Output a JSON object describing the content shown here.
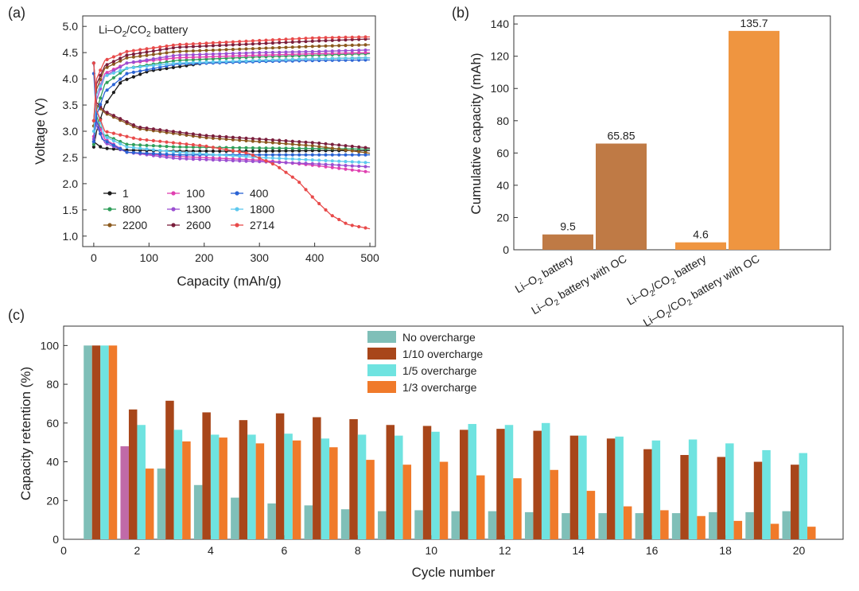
{
  "panel_labels": {
    "a": "(a)",
    "b": "(b)",
    "c": "(c)"
  },
  "chart_data": [
    {
      "id": "a",
      "type": "line",
      "annotation_main": "Li–O",
      "annotation_sub1": "2",
      "annotation_mid": "/CO",
      "annotation_sub2": "2",
      "annotation_end": " battery",
      "xlabel": "Capacity (mAh/g)",
      "ylabel": "Voltage (V)",
      "xlim": [
        -20,
        510
      ],
      "ylim": [
        0.8,
        5.2
      ],
      "xticks": [
        0,
        100,
        200,
        300,
        400,
        500
      ],
      "yticks": [
        1.0,
        1.5,
        2.0,
        2.5,
        3.0,
        3.5,
        4.0,
        4.5,
        5.0
      ],
      "x_tick_labels": [
        "0",
        "100",
        "200",
        "300",
        "400",
        "500"
      ],
      "y_tick_labels": [
        "1.0",
        "1.5",
        "2.0",
        "2.5",
        "3.0",
        "3.5",
        "4.0",
        "4.5",
        "5.0"
      ],
      "legend_position": "bottom-left",
      "series": [
        {
          "name": "1",
          "color": "#1a1a1a",
          "discharge": [
            [
              0,
              2.8
            ],
            [
              15,
              2.68
            ],
            [
              60,
              2.64
            ],
            [
              150,
              2.62
            ],
            [
              300,
              2.62
            ],
            [
              400,
              2.63
            ],
            [
              500,
              2.63
            ]
          ],
          "charge": [
            [
              0,
              2.7
            ],
            [
              5,
              3.0
            ],
            [
              20,
              3.5
            ],
            [
              50,
              3.95
            ],
            [
              100,
              4.15
            ],
            [
              200,
              4.3
            ],
            [
              300,
              4.35
            ],
            [
              400,
              4.38
            ],
            [
              500,
              4.4
            ]
          ]
        },
        {
          "name": "800",
          "color": "#2f9e5a",
          "discharge": [
            [
              0,
              4.3
            ],
            [
              5,
              3.3
            ],
            [
              15,
              2.95
            ],
            [
              60,
              2.75
            ],
            [
              150,
              2.7
            ],
            [
              300,
              2.68
            ],
            [
              400,
              2.67
            ],
            [
              500,
              2.66
            ]
          ],
          "charge": [
            [
              0,
              2.75
            ],
            [
              5,
              3.4
            ],
            [
              20,
              3.9
            ],
            [
              60,
              4.2
            ],
            [
              150,
              4.35
            ],
            [
              300,
              4.42
            ],
            [
              400,
              4.45
            ],
            [
              500,
              4.48
            ]
          ]
        },
        {
          "name": "2200",
          "color": "#8c5a1e",
          "discharge": [
            [
              0,
              4.3
            ],
            [
              5,
              3.5
            ],
            [
              20,
              3.35
            ],
            [
              80,
              3.05
            ],
            [
              200,
              2.88
            ],
            [
              300,
              2.8
            ],
            [
              400,
              2.72
            ],
            [
              500,
              2.58
            ]
          ],
          "charge": [
            [
              0,
              3.1
            ],
            [
              5,
              3.8
            ],
            [
              20,
              4.2
            ],
            [
              60,
              4.4
            ],
            [
              150,
              4.52
            ],
            [
              300,
              4.58
            ],
            [
              400,
              4.62
            ],
            [
              500,
              4.65
            ]
          ]
        },
        {
          "name": "100",
          "color": "#e040b0",
          "discharge": [
            [
              0,
              4.3
            ],
            [
              5,
              3.2
            ],
            [
              20,
              2.85
            ],
            [
              60,
              2.6
            ],
            [
              150,
              2.52
            ],
            [
              300,
              2.45
            ],
            [
              400,
              2.35
            ],
            [
              500,
              2.22
            ]
          ],
          "charge": [
            [
              0,
              2.9
            ],
            [
              5,
              3.7
            ],
            [
              20,
              4.1
            ],
            [
              60,
              4.3
            ],
            [
              150,
              4.4
            ],
            [
              300,
              4.45
            ],
            [
              400,
              4.48
            ],
            [
              500,
              4.5
            ]
          ]
        },
        {
          "name": "1300",
          "color": "#9b4fd1",
          "discharge": [
            [
              0,
              4.3
            ],
            [
              5,
              3.1
            ],
            [
              20,
              2.78
            ],
            [
              60,
              2.6
            ],
            [
              150,
              2.48
            ],
            [
              300,
              2.42
            ],
            [
              400,
              2.38
            ],
            [
              500,
              2.32
            ]
          ],
          "charge": [
            [
              0,
              2.85
            ],
            [
              5,
              3.6
            ],
            [
              20,
              4.05
            ],
            [
              60,
              4.3
            ],
            [
              150,
              4.45
            ],
            [
              300,
              4.5
            ],
            [
              400,
              4.52
            ],
            [
              500,
              4.55
            ]
          ]
        },
        {
          "name": "2600",
          "color": "#7a1e3c",
          "discharge": [
            [
              0,
              4.3
            ],
            [
              5,
              3.55
            ],
            [
              20,
              3.38
            ],
            [
              80,
              3.08
            ],
            [
              200,
              2.92
            ],
            [
              300,
              2.85
            ],
            [
              400,
              2.78
            ],
            [
              500,
              2.68
            ]
          ],
          "charge": [
            [
              0,
              3.2
            ],
            [
              5,
              3.9
            ],
            [
              20,
              4.25
            ],
            [
              60,
              4.45
            ],
            [
              150,
              4.6
            ],
            [
              300,
              4.67
            ],
            [
              400,
              4.72
            ],
            [
              500,
              4.76
            ]
          ]
        },
        {
          "name": "400",
          "color": "#2a63d4",
          "discharge": [
            [
              0,
              4.1
            ],
            [
              5,
              3.2
            ],
            [
              15,
              2.85
            ],
            [
              60,
              2.6
            ],
            [
              150,
              2.55
            ],
            [
              300,
              2.55
            ],
            [
              400,
              2.55
            ],
            [
              500,
              2.55
            ]
          ],
          "charge": [
            [
              0,
              2.8
            ],
            [
              5,
              3.3
            ],
            [
              20,
              3.75
            ],
            [
              60,
              4.1
            ],
            [
              150,
              4.28
            ],
            [
              300,
              4.33
            ],
            [
              400,
              4.35
            ],
            [
              500,
              4.36
            ]
          ]
        },
        {
          "name": "1800",
          "color": "#5ec8ee",
          "discharge": [
            [
              0,
              4.3
            ],
            [
              5,
              3.4
            ],
            [
              20,
              2.9
            ],
            [
              60,
              2.7
            ],
            [
              150,
              2.6
            ],
            [
              300,
              2.5
            ],
            [
              400,
              2.45
            ],
            [
              500,
              2.4
            ]
          ],
          "charge": [
            [
              0,
              3.0
            ],
            [
              5,
              3.7
            ],
            [
              20,
              4.05
            ],
            [
              60,
              4.2
            ],
            [
              150,
              4.3
            ],
            [
              300,
              4.35
            ],
            [
              400,
              4.38
            ],
            [
              500,
              4.4
            ]
          ]
        },
        {
          "name": "2714",
          "color": "#e84a4a",
          "discharge": [
            [
              0,
              4.3
            ],
            [
              5,
              3.4
            ],
            [
              20,
              3.0
            ],
            [
              80,
              2.85
            ],
            [
              200,
              2.72
            ],
            [
              280,
              2.58
            ],
            [
              330,
              2.35
            ],
            [
              370,
              2.05
            ],
            [
              400,
              1.7
            ],
            [
              430,
              1.4
            ],
            [
              460,
              1.22
            ],
            [
              500,
              1.14
            ]
          ],
          "charge": [
            [
              0,
              3.2
            ],
            [
              5,
              4.0
            ],
            [
              20,
              4.35
            ],
            [
              60,
              4.52
            ],
            [
              150,
              4.65
            ],
            [
              300,
              4.73
            ],
            [
              400,
              4.78
            ],
            [
              500,
              4.8
            ]
          ]
        }
      ]
    },
    {
      "id": "b",
      "type": "bar",
      "ylabel": "Cumulative capacity (mAh)",
      "ylim": [
        0,
        145
      ],
      "yticks": [
        0,
        20,
        40,
        60,
        80,
        100,
        120,
        140
      ],
      "y_tick_labels": [
        "0",
        "20",
        "40",
        "60",
        "80",
        "100",
        "120",
        "140"
      ],
      "categories": [
        {
          "pre": "Li–O",
          "sub": "2",
          "mid": "",
          "sub2": "",
          "post": " battery"
        },
        {
          "pre": "Li–O",
          "sub": "2",
          "mid": "",
          "sub2": "",
          "post": " battery with OC"
        },
        {
          "pre": "Li–O",
          "sub": "2",
          "mid": "/CO",
          "sub2": "2",
          "post": " battery"
        },
        {
          "pre": "Li–O",
          "sub": "2",
          "mid": "/CO",
          "sub2": "2",
          "post": " battery with OC"
        }
      ],
      "values": [
        9.5,
        65.85,
        4.6,
        135.7
      ],
      "value_labels": [
        "9.5",
        "65.85",
        "4.6",
        "135.7"
      ],
      "colors": [
        "#bf7a45",
        "#bf7a45",
        "#ef9540",
        "#ef9540"
      ]
    },
    {
      "id": "c",
      "type": "bar",
      "xlabel": "Cycle number",
      "ylabel": "Capacity  retention (%)",
      "xlim": [
        0,
        21.2
      ],
      "ylim": [
        0,
        110
      ],
      "xticks": [
        0,
        2,
        4,
        6,
        8,
        10,
        12,
        14,
        16,
        18,
        20
      ],
      "x_tick_labels": [
        "0",
        "2",
        "4",
        "6",
        "8",
        "10",
        "12",
        "14",
        "16",
        "18",
        "20"
      ],
      "yticks": [
        0,
        20,
        40,
        60,
        80,
        100
      ],
      "y_tick_labels": [
        "0",
        "20",
        "40",
        "60",
        "80",
        "100"
      ],
      "legend_position": "top-center",
      "x": [
        1,
        2,
        3,
        4,
        5,
        6,
        7,
        8,
        9,
        10,
        11,
        12,
        13,
        14,
        15,
        16,
        17,
        18,
        19,
        20
      ],
      "series": [
        {
          "name": "No overcharge",
          "color": "#7fbfb8",
          "values": [
            100,
            48,
            36.5,
            28,
            21.5,
            18.5,
            17.5,
            15.5,
            14.5,
            15,
            14.5,
            14.5,
            14,
            13.5,
            13.5,
            13.5,
            13.5,
            14,
            14,
            14.5
          ]
        },
        {
          "name": "1/10 overcharge",
          "color": "#a8461a",
          "values": [
            100,
            67,
            71.5,
            65.5,
            61.5,
            65,
            63,
            62,
            59,
            58.5,
            56.5,
            57,
            56,
            53.5,
            52,
            46.5,
            43.5,
            42.5,
            40,
            38.5
          ]
        },
        {
          "name": "1/5 overcharge",
          "color": "#6fe3e0",
          "values": [
            100,
            59,
            56.5,
            54,
            54,
            54.5,
            52,
            54,
            53.5,
            55.5,
            59.5,
            59,
            60,
            53.5,
            53,
            51,
            51.5,
            49.5,
            46,
            44.5
          ]
        },
        {
          "name": "1/3 overcharge",
          "color": "#f07a2a",
          "values": [
            100,
            36.5,
            50.5,
            52.5,
            49.5,
            51,
            47.5,
            41,
            38.5,
            40,
            33,
            31.5,
            35.8,
            25,
            17,
            15,
            12,
            9.5,
            8,
            6.5
          ]
        }
      ],
      "highlight_color": "#c06aa8"
    }
  ]
}
